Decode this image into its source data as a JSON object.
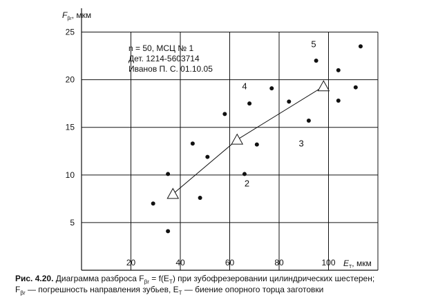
{
  "chart_data": {
    "type": "scatter",
    "ylabel_main": "F",
    "ylabel_sub": "βr",
    "ylabel_unit": ", мкм",
    "xlabel_main": "E",
    "xlabel_sub": "T",
    "xlabel_unit": ", мкм",
    "xlim": [
      0,
      120
    ],
    "ylim": [
      0,
      27.5
    ],
    "x_ticks": [
      20,
      40,
      60,
      80,
      100
    ],
    "y_ticks": [
      5,
      10,
      15,
      20,
      25
    ],
    "x_grid": [
      20,
      40,
      60,
      80,
      100,
      120
    ],
    "y_grid": [
      5,
      10,
      15,
      20,
      25
    ],
    "grid": true,
    "info_lines": [
      "n = 50, МСЦ № 1",
      "Дет. 1214-5603714",
      "Иванов П. С. 01.10.05"
    ],
    "points": [
      {
        "x": 29,
        "y": 7.0
      },
      {
        "x": 35,
        "y": 10.1
      },
      {
        "x": 35,
        "y": 4.1
      },
      {
        "x": 45,
        "y": 13.3
      },
      {
        "x": 48,
        "y": 7.6
      },
      {
        "x": 51,
        "y": 11.9
      },
      {
        "x": 58,
        "y": 16.4
      },
      {
        "x": 66,
        "y": 10.1
      },
      {
        "x": 68,
        "y": 17.5
      },
      {
        "x": 71,
        "y": 13.2
      },
      {
        "x": 77,
        "y": 19.1
      },
      {
        "x": 84,
        "y": 17.7
      },
      {
        "x": 92,
        "y": 15.7
      },
      {
        "x": 95,
        "y": 22.0
      },
      {
        "x": 104,
        "y": 21.0
      },
      {
        "x": 104,
        "y": 17.8
      },
      {
        "x": 111,
        "y": 19.2
      },
      {
        "x": 113,
        "y": 23.5
      }
    ],
    "mean_line": [
      {
        "x": 37,
        "y": 8.0
      },
      {
        "x": 63,
        "y": 13.7
      },
      {
        "x": 98,
        "y": 19.3
      }
    ],
    "annotations": [
      {
        "text": "2",
        "x": 67,
        "y": 8.8
      },
      {
        "text": "3",
        "x": 89,
        "y": 13.0
      },
      {
        "text": "4",
        "x": 66,
        "y": 19.0
      },
      {
        "text": "5",
        "x": 94,
        "y": 23.4
      }
    ]
  },
  "caption": {
    "label": "Рис. 4.20.",
    "line1_a": " Диаграмма разброса F",
    "line1_sub1": "βr",
    "line1_b": " = f(E",
    "line1_sub2": "T",
    "line1_c": ") при зубофрезеровании цилиндрических шестерен;",
    "line2_a": "F",
    "line2_sub1": "βr",
    "line2_b": " — погрешность направления зубьев, E",
    "line2_sub2": "T",
    "line2_c": " — биение опорного торца заготовки"
  }
}
